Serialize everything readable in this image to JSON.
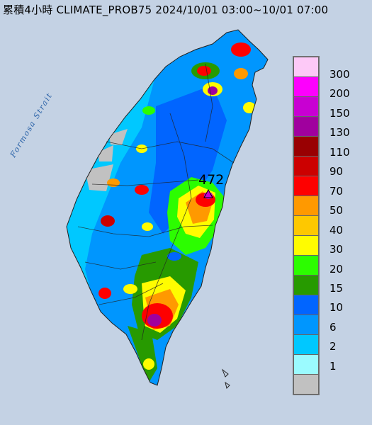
{
  "title": "累積4小時 CLIMATE_PROB75 2024/10/01 03:00~10/01 07:00",
  "strait_label": "Formosa Strait",
  "max_value_label": "472",
  "legend": [
    {
      "label": "300",
      "color": "#fdc9f7"
    },
    {
      "label": "200",
      "color": "#fd00fd"
    },
    {
      "label": "150",
      "color": "#c800d2"
    },
    {
      "label": "130",
      "color": "#a0009e"
    },
    {
      "label": "110",
      "color": "#990002"
    },
    {
      "label": "90",
      "color": "#cc0000"
    },
    {
      "label": "70",
      "color": "#fe0000"
    },
    {
      "label": "50",
      "color": "#ff9900"
    },
    {
      "label": "40",
      "color": "#fec800"
    },
    {
      "label": "30",
      "color": "#fffc00"
    },
    {
      "label": "20",
      "color": "#2cfd00"
    },
    {
      "label": "15",
      "color": "#279a00"
    },
    {
      "label": "10",
      "color": "#0165ff"
    },
    {
      "label": "6",
      "color": "#0096fe"
    },
    {
      "label": "2",
      "color": "#00c8ff"
    },
    {
      "label": "1",
      "color": "#9bfbff"
    },
    {
      "label": "",
      "color": "#c1c1c1"
    }
  ],
  "colors": {
    "sea": "#c9d6e6",
    "land_base": "#0096fe"
  }
}
